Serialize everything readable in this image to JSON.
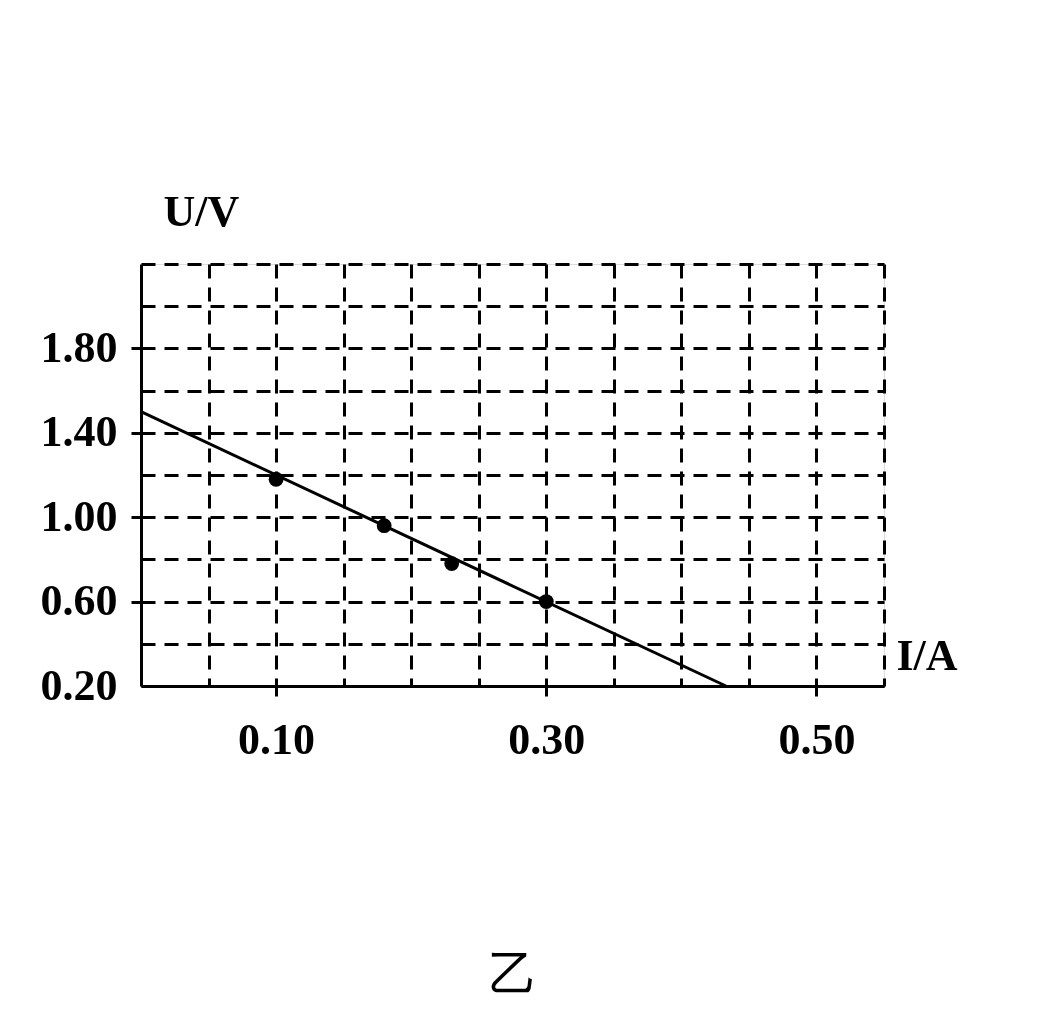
{
  "chart_data": {
    "type": "scatter",
    "xlabel": "I/A",
    "ylabel": "U/V",
    "annotations": [
      "乙"
    ],
    "xlim": [
      0,
      0.55
    ],
    "ylim": [
      0.2,
      2.2
    ],
    "xticks": [
      {
        "value": 0.05,
        "label": null
      },
      "0.10",
      {
        "value": 0.15,
        "label": null
      },
      {
        "value": 0.2,
        "label": null
      },
      {
        "value": 0.25,
        "label": null
      },
      {
        "value": 0.3,
        "label": "0.30"
      },
      {
        "value": 0.35,
        "label": null
      },
      {
        "value": 0.4,
        "label": null
      },
      {
        "value": 0.45,
        "label": null
      },
      {
        "value": 0.5,
        "label": "0.50"
      },
      {
        "value": 0.55,
        "label": null
      }
    ],
    "yticks": [
      {
        "value": 0.2,
        "label": "0.20"
      },
      {
        "value": 0.4,
        "label": null
      },
      {
        "value": 0.6,
        "label": "0.60"
      },
      {
        "value": 0.8,
        "label": null
      },
      {
        "value": 1.0,
        "label": "1.00"
      },
      {
        "value": 1.2,
        "label": null
      },
      {
        "value": 1.4,
        "label": "1.40"
      },
      {
        "value": 1.6,
        "label": null
      },
      {
        "value": 1.8,
        "label": "1.80"
      },
      {
        "value": 2.0,
        "label": null
      },
      {
        "value": 2.2,
        "label": null
      }
    ],
    "grid": true,
    "series": [
      {
        "type": "line",
        "color": "#000000",
        "x": [
          0,
          0.433
        ],
        "values": [
          1.5,
          0.2
        ],
        "line_style": "solid",
        "marker": "none"
      },
      {
        "color": "#000000",
        "x": [
          0.1,
          0.18,
          0.23,
          0.3
        ],
        "values": [
          1.18,
          0.96,
          0.78,
          0.6
        ],
        "marker": "circle"
      }
    ]
  }
}
